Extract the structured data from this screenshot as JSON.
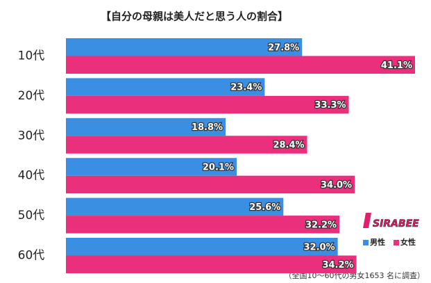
{
  "chart_data": {
    "type": "hbar",
    "title": "【自分の母親は美人だと思う人の割合】",
    "categories": [
      "10代",
      "20代",
      "30代",
      "40代",
      "50代",
      "60代"
    ],
    "series": [
      {
        "name": "男性",
        "color": "#3b8fe3",
        "values": [
          27.8,
          23.4,
          18.8,
          20.1,
          25.6,
          32.0
        ],
        "value_labels": [
          "27.8%",
          "23.4%",
          "18.8%",
          "20.1%",
          "25.6%",
          "32.0%"
        ]
      },
      {
        "name": "女性",
        "color": "#ea2f7c",
        "values": [
          41.1,
          33.3,
          28.4,
          34.0,
          32.2,
          34.2
        ],
        "value_labels": [
          "41.1%",
          "33.3%",
          "28.4%",
          "34.0%",
          "32.2%",
          "34.2%"
        ]
      }
    ],
    "note": "（全国10～60代の男女1653 名に調査）",
    "logo": "SIRABEE"
  }
}
